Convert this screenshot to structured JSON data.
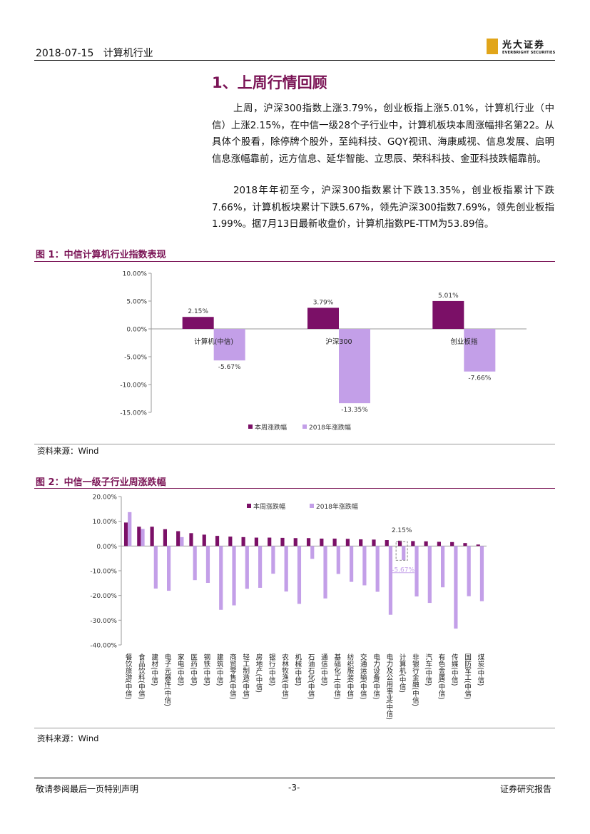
{
  "header": {
    "date": "2018-07-15",
    "industry": "计算机行业",
    "logo_cn": "光大证券",
    "logo_en": "EVERBRIGHT SECURITIES"
  },
  "section": {
    "title": "1、上周行情回顾",
    "para1": "上周，沪深300指数上涨3.79%，创业板指上涨5.01%，计算机行业（中信）上涨2.15%，在中信一级28个子行业中，计算机板块本周涨幅排名第22。从具体个股看，除停牌个股外，至纯科技、GQY视讯、海康威视、信息发展、启明信息涨幅靠前，远方信息、延华智能、立思辰、荣科科技、金亚科技跌幅靠前。",
    "para2": "2018年年初至今，沪深300指数累计下跌13.35%，创业板指累计下跌7.66%，计算机板块累计下跌5.67%，领先沪深300指数7.69%，领先创业板指1.99%。据7月13日最新收盘价，计算机指数PE-TTM为53.89倍。"
  },
  "figure1": {
    "title": "图 1：中信计算机行业指数表现",
    "source": "资料来源：Wind"
  },
  "figure2": {
    "title": "图 2：中信一级子行业周涨跌幅",
    "source": "资料来源：Wind"
  },
  "footer": {
    "left": "敬请参阅最后一页特别声明",
    "center": "-3-",
    "right": "证券研究报告"
  },
  "colors": {
    "accent": "#7a1355",
    "weekly": "#7b1067",
    "ytd": "#c39fe8"
  },
  "chart_data": [
    {
      "type": "bar",
      "title": "中信计算机行业指数表现",
      "categories": [
        "计算机(中信)",
        "沪深300",
        "创业板指"
      ],
      "series": [
        {
          "name": "本周涨跌幅",
          "values": [
            2.15,
            3.79,
            5.01
          ]
        },
        {
          "name": "2018年涨跌幅",
          "values": [
            -5.67,
            -13.35,
            -7.66
          ]
        }
      ],
      "value_labels": {
        "weekly": [
          "2.15%",
          "3.79%",
          "5.01%"
        ],
        "ytd": [
          "-5.67%",
          "-13.35%",
          "-7.66%"
        ]
      },
      "ylim": [
        -15,
        10
      ],
      "yticks": [
        "10.00%",
        "5.00%",
        "0.00%",
        "-5.00%",
        "-10.00%",
        "-15.00%"
      ],
      "ytick_values": [
        10,
        5,
        0,
        -5,
        -10,
        -15
      ],
      "legend": "bottom"
    },
    {
      "type": "bar",
      "title": "中信一级子行业周涨跌幅",
      "categories": [
        "餐饮旅游(中信)",
        "食品饮料(中信)",
        "建材(中信)",
        "电子元器件(中信)",
        "家电(中信)",
        "医药(中信)",
        "钢铁(中信)",
        "建筑(中信)",
        "商贸零售(中信)",
        "轻工制造(中信)",
        "房地产(中信)",
        "银行(中信)",
        "农林牧渔(中信)",
        "机械(中信)",
        "石油石化(中信)",
        "通信(中信)",
        "基础化工(中信)",
        "纺织服装(中信)",
        "交通运输(中信)",
        "电力设备(中信)",
        "电力及公用事业(中信)",
        "计算机(中信)",
        "非银行金融(中信)",
        "汽车(中信)",
        "有色金属(中信)",
        "传媒(中信)",
        "国防军工(中信)",
        "煤炭(中信)"
      ],
      "series": [
        {
          "name": "本周涨跌幅",
          "values": [
            9.5,
            7.8,
            7.8,
            6.8,
            6.0,
            5.2,
            4.6,
            4.1,
            3.8,
            3.6,
            3.4,
            3.4,
            3.3,
            3.2,
            3.2,
            3.0,
            3.0,
            2.9,
            2.7,
            2.6,
            2.4,
            2.15,
            2.0,
            1.9,
            1.7,
            1.6,
            1.2,
            0.6
          ]
        },
        {
          "name": "2018年涨跌幅",
          "values": [
            13.7,
            6.9,
            -17.2,
            -18.1,
            3.6,
            -13.8,
            -14.9,
            -25.8,
            -24.0,
            -17.3,
            -16.9,
            -11.2,
            -18.4,
            -23.4,
            -5.2,
            -21.2,
            -11.3,
            -14.5,
            -15.9,
            -18.5,
            -27.8,
            -5.67,
            -20.4,
            -23.0,
            -16.7,
            -33.4,
            -20.3,
            -22.3
          ]
        }
      ],
      "highlight": {
        "category": "计算机(中信)",
        "weekly_label": "2.15%",
        "ytd_label": "-5.67%"
      },
      "ylim": [
        -40,
        20
      ],
      "yticks": [
        "20.00%",
        "10.00%",
        "0.00%",
        "-10.00%",
        "-20.00%",
        "-30.00%",
        "-40.00%"
      ],
      "ytick_values": [
        20,
        10,
        0,
        -10,
        -20,
        -30,
        -40
      ],
      "legend": "top-right"
    }
  ]
}
